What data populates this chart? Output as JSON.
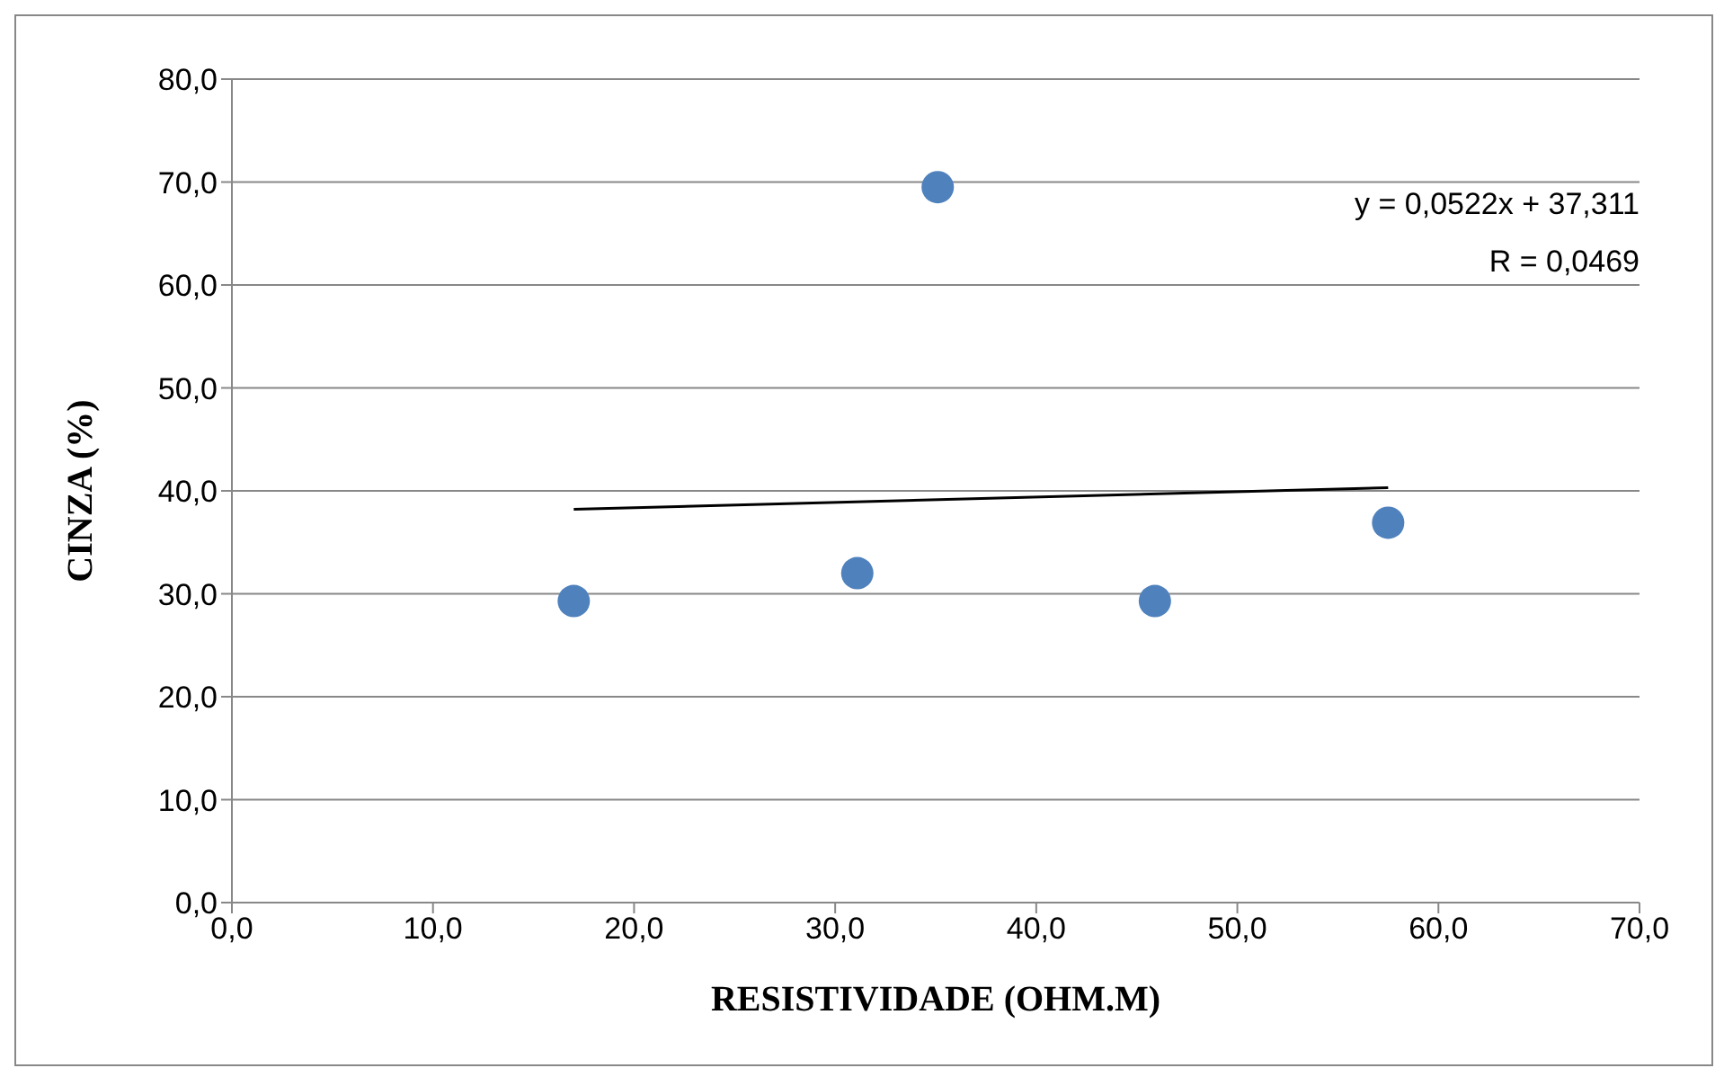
{
  "chart_data": {
    "type": "scatter",
    "xlabel": "RESISTIVIDADE  (OHM.M)",
    "ylabel": "CINZA  (%)",
    "xlim": [
      0,
      70
    ],
    "ylim": [
      0,
      80
    ],
    "xticks": [
      {
        "value": 0,
        "label": "0,0"
      },
      {
        "value": 10,
        "label": "10,0"
      },
      {
        "value": 20,
        "label": "20,0"
      },
      {
        "value": 30,
        "label": "30,0"
      },
      {
        "value": 40,
        "label": "40,0"
      },
      {
        "value": 50,
        "label": "50,0"
      },
      {
        "value": 60,
        "label": "60,0"
      },
      {
        "value": 70,
        "label": "70,0"
      }
    ],
    "yticks": [
      {
        "value": 0,
        "label": "0,0"
      },
      {
        "value": 10,
        "label": "10,0"
      },
      {
        "value": 20,
        "label": "20,0"
      },
      {
        "value": 30,
        "label": "30,0"
      },
      {
        "value": 40,
        "label": "40,0"
      },
      {
        "value": 50,
        "label": "50,0"
      },
      {
        "value": 60,
        "label": "60,0"
      },
      {
        "value": 70,
        "label": "70,0"
      },
      {
        "value": 80,
        "label": "80,0"
      }
    ],
    "grid": "y",
    "marker": "circle",
    "series": [
      {
        "color": "#4f81bd",
        "x": [
          17.0,
          31.1,
          35.1,
          45.9,
          57.5
        ],
        "values": [
          29.3,
          32.0,
          69.5,
          29.3,
          36.9
        ]
      },
      {
        "type": "line",
        "color": "#000000",
        "marker": "none",
        "x": [
          17.0,
          57.5
        ],
        "values": [
          38.2,
          40.3
        ]
      }
    ],
    "annotations": [
      "y = 0,0522x + 37,311",
      "R = 0,0469"
    ]
  }
}
